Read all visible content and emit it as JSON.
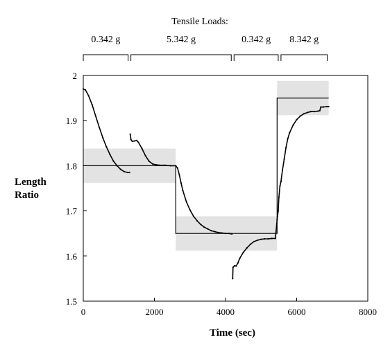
{
  "chart_data": {
    "type": "line",
    "title": "Tensile Loads:",
    "xlabel": "Time (sec)",
    "ylabel_line1": "Length",
    "ylabel_line2": "Ratio",
    "xlim": [
      0,
      8000
    ],
    "ylim": [
      1.5,
      2.0
    ],
    "x_ticks": [
      0,
      2000,
      4000,
      6000,
      8000
    ],
    "x_tick_labels": [
      "0",
      "2000",
      "4000",
      "6000",
      "8000"
    ],
    "y_ticks": [
      1.5,
      1.6,
      1.7,
      1.8,
      1.9,
      2.0
    ],
    "y_tick_labels": [
      "1.5",
      "1.6",
      "1.7",
      "1.8",
      "1.9",
      "2"
    ],
    "grid": false,
    "load_segments": [
      {
        "label": "0.342 g",
        "x_start": 0,
        "x_end": 1300
      },
      {
        "label": "5.342 g",
        "x_start": 1300,
        "x_end": 4200
      },
      {
        "label": "0.342 g",
        "x_start": 4200,
        "x_end": 5520
      },
      {
        "label": "8.342 g",
        "x_start": 5520,
        "x_end": 6900
      }
    ],
    "tolerance_bands": [
      {
        "x_start": 0,
        "x_end": 2600,
        "y_low": 1.762,
        "y_high": 1.838
      },
      {
        "x_start": 2600,
        "x_end": 5450,
        "y_low": 1.612,
        "y_high": 1.688
      },
      {
        "x_start": 5450,
        "x_end": 6900,
        "y_low": 1.912,
        "y_high": 1.988
      }
    ],
    "series": [
      {
        "role": "model",
        "points": [
          [
            0,
            1.8
          ],
          [
            2600,
            1.8
          ],
          [
            2600,
            1.65
          ],
          [
            5450,
            1.65
          ],
          [
            5450,
            1.95
          ],
          [
            6900,
            1.95
          ]
        ]
      },
      {
        "role": "measured",
        "points": [
          [
            0,
            1.97
          ],
          [
            60,
            1.968
          ],
          [
            150,
            1.955
          ],
          [
            250,
            1.935
          ],
          [
            350,
            1.91
          ],
          [
            450,
            1.885
          ],
          [
            550,
            1.862
          ],
          [
            650,
            1.842
          ],
          [
            750,
            1.825
          ],
          [
            850,
            1.81
          ],
          [
            950,
            1.8
          ],
          [
            1050,
            1.792
          ],
          [
            1150,
            1.787
          ],
          [
            1250,
            1.785
          ],
          [
            1300,
            1.785
          ],
          [
            1320,
            1.87
          ],
          [
            1340,
            1.858
          ],
          [
            1380,
            1.854
          ],
          [
            1450,
            1.855
          ],
          [
            1500,
            1.856
          ],
          [
            1550,
            1.852
          ],
          [
            1650,
            1.838
          ],
          [
            1750,
            1.822
          ],
          [
            1850,
            1.81
          ],
          [
            1950,
            1.804
          ],
          [
            2050,
            1.802
          ],
          [
            2150,
            1.801
          ],
          [
            2300,
            1.801
          ],
          [
            2450,
            1.8
          ],
          [
            2600,
            1.8
          ],
          [
            2650,
            1.795
          ],
          [
            2700,
            1.78
          ],
          [
            2750,
            1.762
          ],
          [
            2800,
            1.745
          ],
          [
            2900,
            1.72
          ],
          [
            3000,
            1.702
          ],
          [
            3100,
            1.688
          ],
          [
            3200,
            1.678
          ],
          [
            3300,
            1.67
          ],
          [
            3400,
            1.664
          ],
          [
            3500,
            1.66
          ],
          [
            3600,
            1.656
          ],
          [
            3700,
            1.654
          ],
          [
            3800,
            1.652
          ],
          [
            3900,
            1.651
          ],
          [
            4000,
            1.65
          ],
          [
            4100,
            1.65
          ],
          [
            4180,
            1.649
          ],
          [
            4200,
            1.55
          ],
          [
            4210,
            1.575
          ],
          [
            4250,
            1.578
          ],
          [
            4300,
            1.578
          ],
          [
            4350,
            1.585
          ],
          [
            4400,
            1.595
          ],
          [
            4500,
            1.608
          ],
          [
            4600,
            1.618
          ],
          [
            4700,
            1.626
          ],
          [
            4800,
            1.632
          ],
          [
            4900,
            1.635
          ],
          [
            5000,
            1.637
          ],
          [
            5100,
            1.638
          ],
          [
            5200,
            1.638
          ],
          [
            5300,
            1.639
          ],
          [
            5400,
            1.639
          ],
          [
            5450,
            1.68
          ],
          [
            5480,
            1.7
          ],
          [
            5500,
            1.73
          ],
          [
            5530,
            1.755
          ],
          [
            5560,
            1.765
          ],
          [
            5600,
            1.79
          ],
          [
            5650,
            1.815
          ],
          [
            5700,
            1.84
          ],
          [
            5750,
            1.86
          ],
          [
            5800,
            1.873
          ],
          [
            5900,
            1.89
          ],
          [
            6000,
            1.902
          ],
          [
            6100,
            1.91
          ],
          [
            6200,
            1.915
          ],
          [
            6300,
            1.918
          ],
          [
            6400,
            1.92
          ],
          [
            6500,
            1.92
          ],
          [
            6600,
            1.921
          ],
          [
            6650,
            1.922
          ],
          [
            6680,
            1.93
          ],
          [
            6750,
            1.93
          ],
          [
            6850,
            1.931
          ],
          [
            6900,
            1.931
          ]
        ]
      }
    ]
  }
}
